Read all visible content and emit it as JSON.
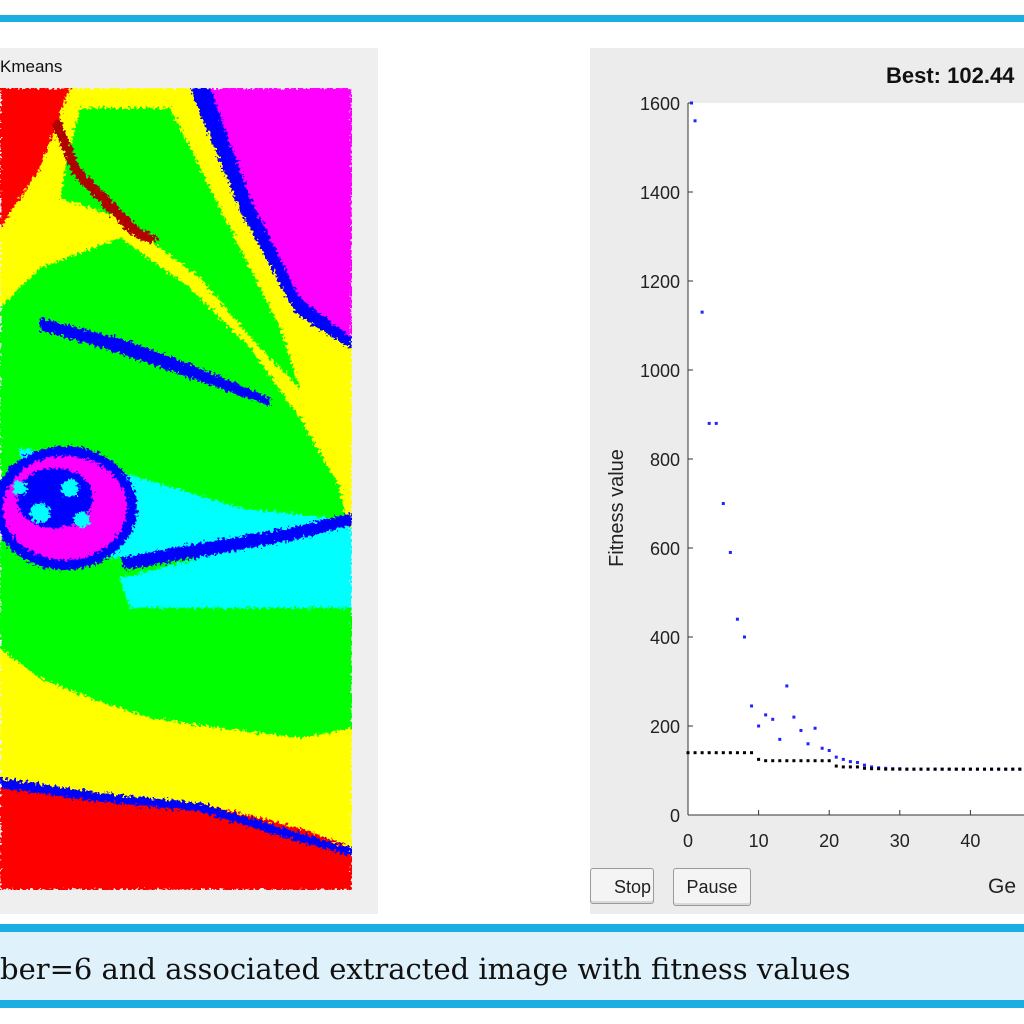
{
  "caption": "ber=6 and associated extracted image with fitness values",
  "left_figure": {
    "title": "Kmeans"
  },
  "buttons": {
    "stop": "Stop",
    "pause": "Pause"
  },
  "colors": {
    "rule": "#1aaee3",
    "caption_background": "#dff1fa",
    "cluster_red": "#ff0000",
    "cluster_magenta": "#ff00ff",
    "cluster_yellow": "#ffff00",
    "cluster_green": "#00ff00",
    "cluster_cyan": "#00ffff",
    "cluster_blue": "#0000ff",
    "best_marker": "#000000",
    "mean_marker": "#2222ff"
  },
  "chart_data": {
    "type": "scatter",
    "title": "Best: 102.44",
    "xlabel": "Ge",
    "ylabel": "Fitness value",
    "xlim": [
      0,
      48
    ],
    "ylim": [
      0,
      1600
    ],
    "xticks": [
      "0",
      "10",
      "20",
      "30",
      "40"
    ],
    "yticks": [
      "0",
      "200",
      "400",
      "600",
      "800",
      "1000",
      "1200",
      "1400",
      "1600"
    ],
    "grid": false,
    "series": [
      {
        "marker": "blue-dots",
        "x": [
          0.5,
          1,
          2,
          3,
          4,
          5,
          6,
          7,
          8,
          9,
          10,
          11,
          12,
          13,
          14,
          15,
          16,
          17,
          18,
          19,
          20,
          21,
          22,
          23,
          24,
          25,
          26,
          27,
          28,
          29,
          30,
          31,
          32,
          33,
          34,
          35,
          36,
          37,
          38,
          39,
          40,
          41,
          42,
          43,
          44,
          45,
          46,
          47
        ],
        "y": [
          1600,
          1560,
          1130,
          880,
          880,
          700,
          590,
          440,
          400,
          245,
          200,
          225,
          215,
          170,
          290,
          220,
          190,
          160,
          195,
          150,
          145,
          130,
          125,
          120,
          118,
          112,
          108,
          106,
          105,
          104,
          104,
          103,
          103,
          103,
          103,
          103,
          103,
          103,
          103,
          103,
          103,
          103,
          103,
          103,
          103,
          103,
          103,
          103
        ]
      },
      {
        "marker": "black-dots",
        "x": [
          0,
          1,
          2,
          3,
          4,
          5,
          6,
          7,
          8,
          9,
          10,
          11,
          12,
          13,
          14,
          15,
          16,
          17,
          18,
          19,
          20,
          21,
          22,
          23,
          24,
          25,
          26,
          27,
          28,
          29,
          30,
          31,
          32,
          33,
          34,
          35,
          36,
          37,
          38,
          39,
          40,
          41,
          42,
          43,
          44,
          45,
          46,
          47
        ],
        "y": [
          140,
          140,
          140,
          140,
          140,
          140,
          140,
          140,
          140,
          140,
          125,
          122,
          122,
          122,
          122,
          122,
          122,
          122,
          122,
          122,
          122,
          110,
          108,
          108,
          108,
          105,
          104,
          104,
          103,
          103,
          103,
          103,
          103,
          103,
          103,
          103,
          103,
          103,
          103,
          103,
          103,
          103,
          103,
          103,
          103,
          103,
          103,
          103
        ]
      }
    ]
  }
}
